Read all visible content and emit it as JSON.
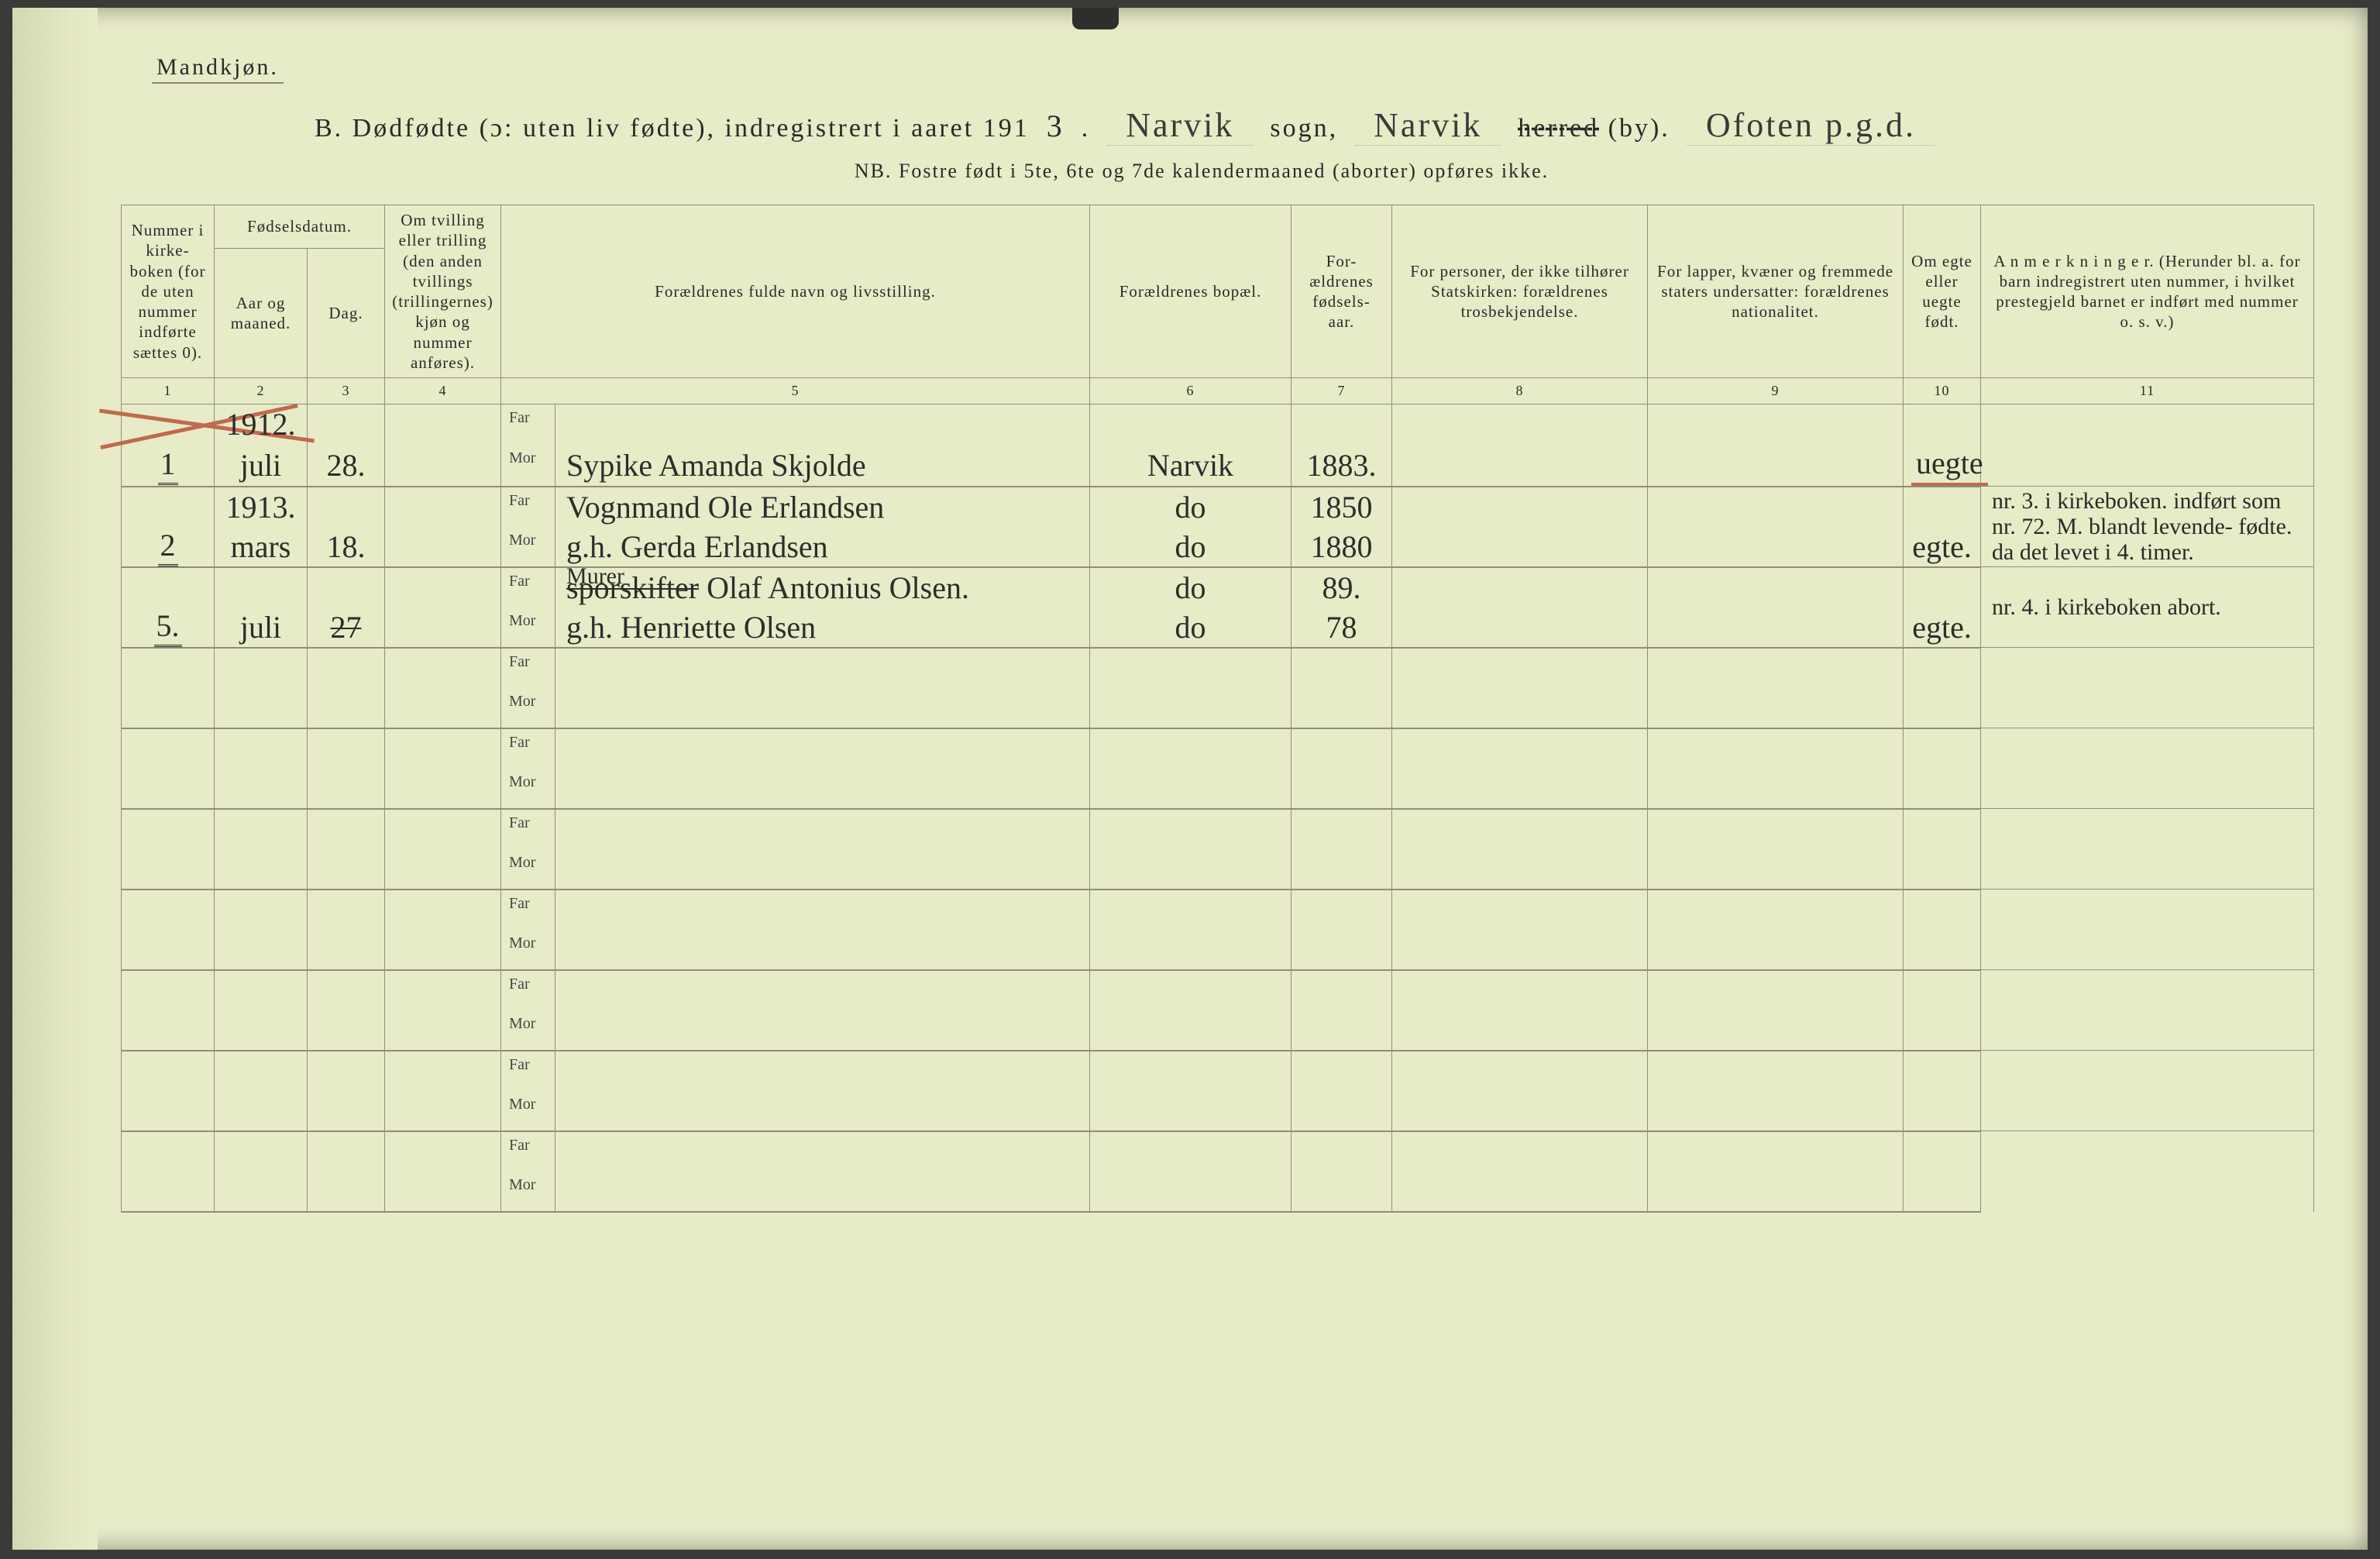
{
  "page_background": "#e8ebc8",
  "ink_color": "#2a2a28",
  "red_color": "#c06a4e",
  "border_color": "#8e8e7a",
  "gender_label": "Mandkjøn.",
  "title": {
    "prefix": "B.   Dødfødte (ɔ: uten liv fødte), indregistrert i aaret 191",
    "year_suffix": "3",
    "parish_fill": "Narvik",
    "word_sogn": "sogn,",
    "district_fill": "Narvik",
    "word_herred": "herred",
    "word_by": "(by).",
    "region_fill": "Ofoten p.g.d."
  },
  "nb_line": "NB.  Fostre født i 5te, 6te og 7de kalendermaaned (aborter) opføres ikke.",
  "columns": {
    "c1": "Nummer i kirke- boken (for de uten nummer indførte sættes 0).",
    "c2_top": "Fødselsdatum.",
    "c2a": "Aar og maaned.",
    "c2b": "Dag.",
    "c4": "Om tvilling eller trilling (den anden tvillings (trillingernes) kjøn og nummer anføres).",
    "c5": "Forældrenes fulde navn og livsstilling.",
    "c6": "Forældrenes bopæl.",
    "c7": "For- ældrenes fødsels- aar.",
    "c8": "For personer, der ikke tilhører Statskirken: forældrenes trosbekjendelse.",
    "c9": "For lapper, kvæner og fremmede staters undersatter: forældrenes nationalitet.",
    "c10": "Om egte eller uegte født.",
    "c11": "A n m e r k n i n g e r. (Herunder bl. a. for barn indregistrert uten nummer, i hvilket prestegjeld barnet er indført med nummer o. s. v.)",
    "nums": [
      "1",
      "2",
      "3",
      "4",
      "5",
      "6",
      "7",
      "8",
      "9",
      "10",
      "11"
    ]
  },
  "far_label": "Far",
  "mor_label": "Mor",
  "records": [
    {
      "num": "1",
      "year": "1912.",
      "month": "juli",
      "day": "28.",
      "far": "",
      "mor": "Sypike Amanda Skjolde",
      "residence": "Narvik",
      "far_year": "",
      "mor_year": "1883.",
      "legit": "uegte",
      "legit_red_underline": true,
      "red_cross": true,
      "remarks": ""
    },
    {
      "num": "2",
      "year": "1913.",
      "month": "mars",
      "day": "18.",
      "far": "Vognmand Ole Erlandsen",
      "mor": "g.h. Gerda Erlandsen",
      "residence": "do",
      "far_year": "1850",
      "mor_year": "1880",
      "legit": "egte.",
      "remarks": "nr. 3. i kirkeboken. indført som nr. 72. M. blandt levende- fødte. da det levet i 4. timer."
    },
    {
      "num": "5.",
      "year": "",
      "month": "juli",
      "day": "27",
      "day_struck": true,
      "far_prefix_struck": "sporskifter",
      "far_above": "Murer",
      "far": " Olaf Antonius Olsen.",
      "mor": "g.h. Henriette Olsen",
      "residence": "do",
      "far_year": "89.",
      "mor_year": "78",
      "legit": "egte.",
      "remarks": "nr. 4. i kirkeboken abort."
    }
  ],
  "empty_rows": 7,
  "fonts": {
    "print_family": "Georgia, Times New Roman, serif",
    "script_family": "Brush Script MT, Segoe Script, cursive",
    "header_fontsize_pt": 16,
    "body_script_fontsize_pt": 30,
    "title_fontsize_pt": 25
  }
}
